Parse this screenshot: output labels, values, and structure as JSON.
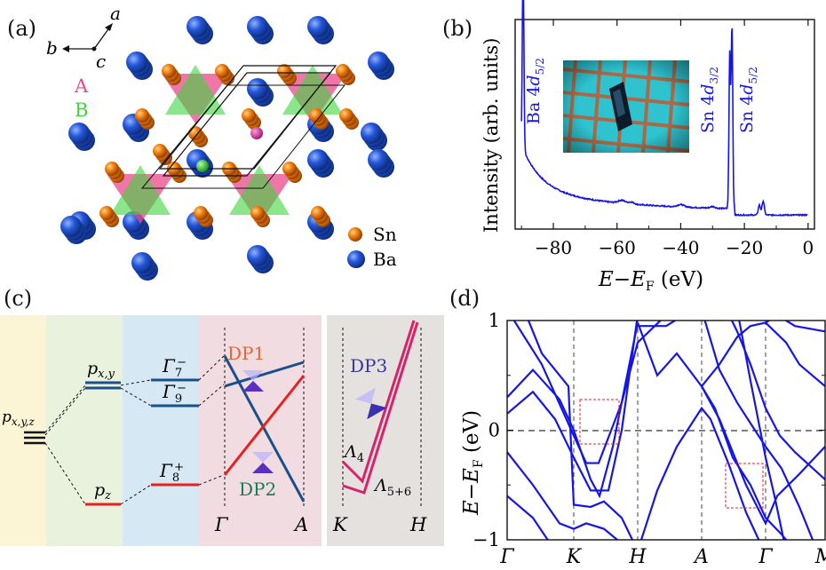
{
  "panels": {
    "a": {
      "label": "(a)"
    },
    "b": {
      "label": "(b)"
    },
    "c": {
      "label": "(c)"
    },
    "d": {
      "label": "(d)"
    }
  },
  "panel_a": {
    "axis_a": "a",
    "axis_b": "b",
    "axis_c": "c",
    "site_A": "A",
    "site_B": "B",
    "legend_sn": "Sn",
    "legend_ba": "Ba",
    "colors": {
      "sn": "#f07d0a",
      "ba": "#2456d8",
      "site_A": "#e84a8a",
      "site_B": "#3dd63d"
    }
  },
  "panel_b": {
    "ylabel": "Intensity (arb. units)",
    "xlabel": "E−E_F (eV)",
    "xlabel_main": "E",
    "xlabel_minus": "−",
    "xlabel_E2": "E",
    "xlabel_sub": "F",
    "xlabel_unit": " (eV)",
    "peak_labels": [
      {
        "name": "Ba 4d5/2",
        "base": "Ba 4",
        "d": "d",
        "sub": "5/2"
      },
      {
        "name": "Sn 4d3/2",
        "base": "Sn 4",
        "d": "d",
        "sub": "3/2"
      },
      {
        "name": "Sn 4d5/2",
        "base": "Sn 4",
        "d": "d",
        "sub": "5/2"
      }
    ],
    "colors": {
      "spectrum": "#1515e8"
    }
  },
  "panel_c": {
    "levels": {
      "pxyz": "p",
      "pxyz_sub": "x,y,z",
      "pxy": "p",
      "pxy_sub": "x,y",
      "pz": "p",
      "pz_sub": "z",
      "g7": "Γ",
      "g7_sub": "7",
      "g7_sup": "−",
      "g9": "Γ",
      "g9_sub": "9",
      "g9_sup": "−",
      "g8": "Γ",
      "g8_sub": "8",
      "g8_sup": "+",
      "l4": "Λ",
      "l4_sub": "4",
      "l56": "Λ",
      "l56_sub": "5+6"
    },
    "dirac_points": [
      "DP1",
      "DP2",
      "DP3"
    ],
    "k_labels": [
      "Γ",
      "A",
      "K",
      "H"
    ],
    "colors": {
      "blue": "#1a4f8c",
      "red": "#e82020",
      "pink": "#d8226a",
      "dp1": "#ef6030",
      "dp2": "#1a7a52",
      "dp3": "#3a34a4"
    }
  },
  "chart_data": {
    "type": "line",
    "title": "",
    "xlabel": "",
    "ylabel": "E−E_F (eV)",
    "ylabel_E": "E",
    "ylabel_minus": "−",
    "ylabel_E2": "E",
    "ylabel_sub": "F",
    "ylabel_unit": " (eV)",
    "ylim": [
      -1,
      1
    ],
    "yticks": [
      "1",
      "0",
      "−1"
    ],
    "xticks": [
      "Γ",
      "K",
      "H",
      "A",
      "Γ",
      "M"
    ],
    "fermi_level": 0,
    "series_color": "#1515e8",
    "highlight_color": "#e82020"
  }
}
